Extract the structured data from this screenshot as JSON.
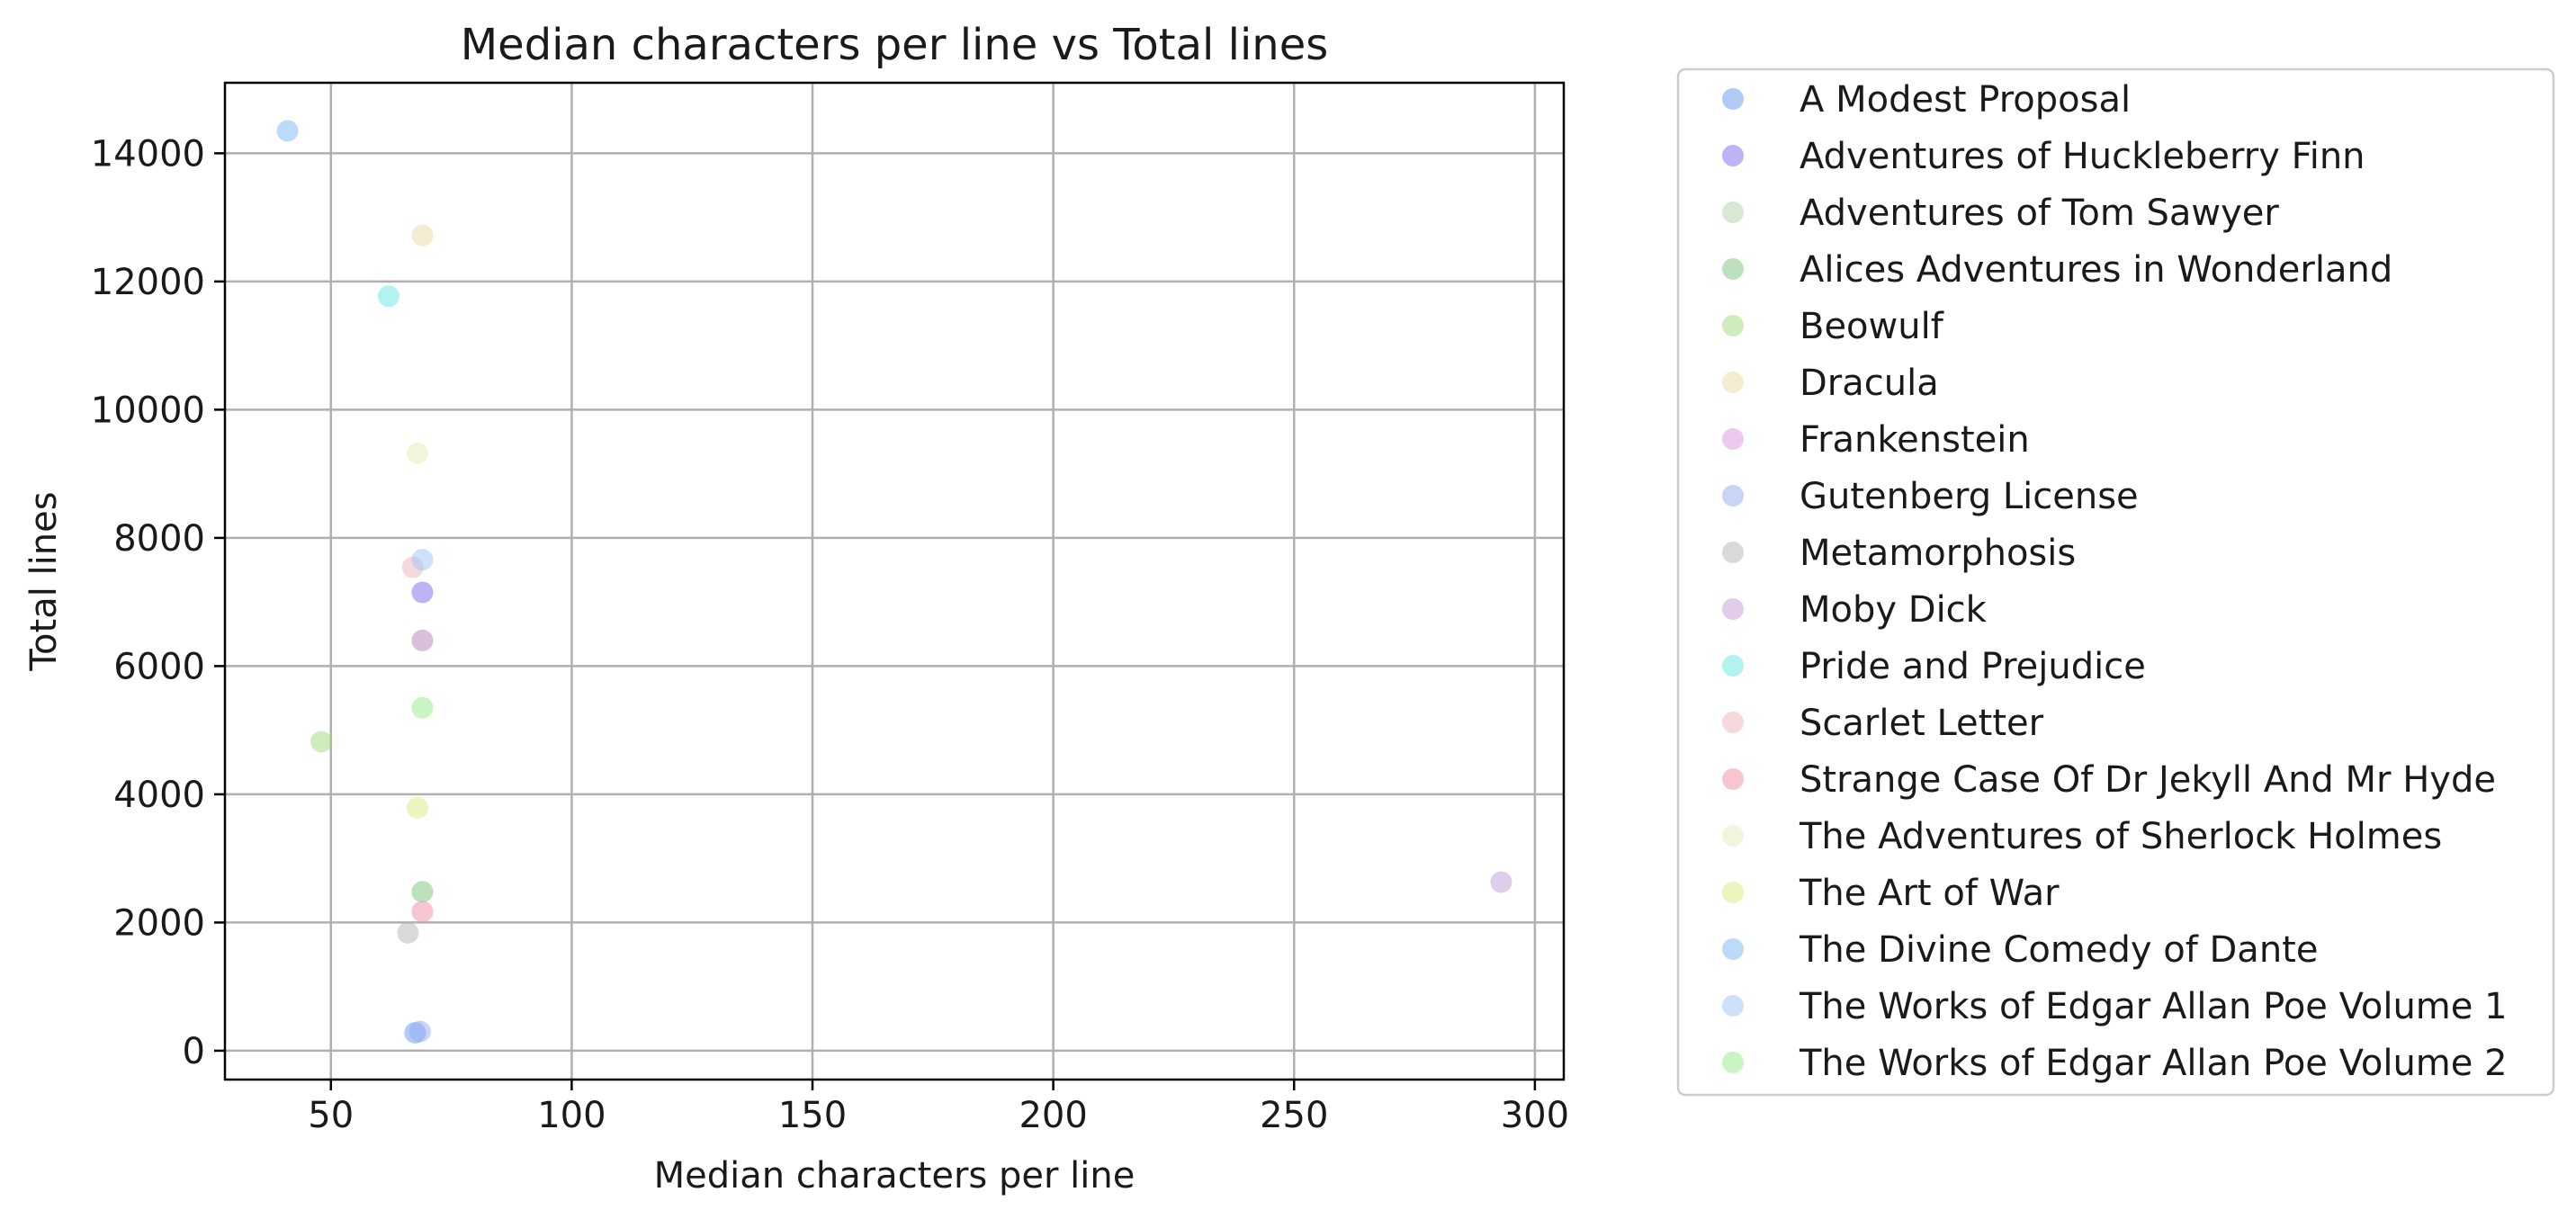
{
  "chart_data": {
    "type": "scatter",
    "title": "Median characters per line vs Total lines",
    "xlabel": "Median characters per line",
    "ylabel": "Total lines",
    "xlim": [
      28,
      306
    ],
    "ylim": [
      -450,
      15100
    ],
    "xticks": [
      50,
      100,
      150,
      200,
      250,
      300
    ],
    "yticks": [
      0,
      2000,
      4000,
      6000,
      8000,
      10000,
      12000,
      14000
    ],
    "grid": true,
    "legend_position": "outside-right",
    "point_alpha": 0.5,
    "series": [
      {
        "name": "A Modest Proposal",
        "color": "#6495ed",
        "points": [
          [
            67.5,
            280
          ]
        ]
      },
      {
        "name": "Adventures of Huckleberry Finn",
        "color": "#7b68ee",
        "points": [
          [
            69,
            7150
          ]
        ]
      },
      {
        "name": "Adventures of Tom Sawyer",
        "color": "#b4d2a5",
        "points": [
          [
            69,
            6400
          ]
        ]
      },
      {
        "name": "Alices Adventures in Wonderland",
        "color": "#7cc47c",
        "points": [
          [
            69,
            2480
          ]
        ]
      },
      {
        "name": "Beowulf",
        "color": "#a1d87a",
        "points": [
          [
            48,
            4820
          ]
        ]
      },
      {
        "name": "Dracula",
        "color": "#ead7a4",
        "points": [
          [
            69,
            12720
          ]
        ]
      },
      {
        "name": "Frankenstein",
        "color": "#da96e0",
        "points": [
          [
            69,
            6400
          ]
        ]
      },
      {
        "name": "Gutenberg License",
        "color": "#94a9f4",
        "points": [
          [
            68.5,
            300
          ]
        ]
      },
      {
        "name": "Metamorphosis",
        "color": "#b3b3b3",
        "points": [
          [
            66,
            1840
          ]
        ]
      },
      {
        "name": "Moby Dick",
        "color": "#c39bd3",
        "points": [
          [
            293,
            2630
          ]
        ]
      },
      {
        "name": "Pride and Prejudice",
        "color": "#66e6e0",
        "points": [
          [
            62,
            11770
          ]
        ]
      },
      {
        "name": "Scarlet Letter",
        "color": "#ebb3bc",
        "points": [
          [
            67,
            7540
          ]
        ]
      },
      {
        "name": "Strange Case Of Dr Jekyll And Mr Hyde",
        "color": "#f08ca0",
        "points": [
          [
            69,
            2170
          ]
        ]
      },
      {
        "name": "The Adventures of Sherlock Holmes",
        "color": "#e3ecb8",
        "points": [
          [
            68,
            9320
          ]
        ]
      },
      {
        "name": "The Art of War",
        "color": "#dcec80",
        "points": [
          [
            68,
            3790
          ]
        ]
      },
      {
        "name": "The Divine Comedy of Dante",
        "color": "#7ab8f5",
        "points": [
          [
            41,
            14350
          ]
        ]
      },
      {
        "name": "The Works of Edgar Allan Poe Volume 1",
        "color": "#9ec4fa",
        "points": [
          [
            69,
            7660
          ]
        ]
      },
      {
        "name": "The Works of Edgar Allan Poe Volume 2",
        "color": "#98ea88",
        "points": [
          [
            69,
            5350
          ]
        ]
      }
    ]
  }
}
